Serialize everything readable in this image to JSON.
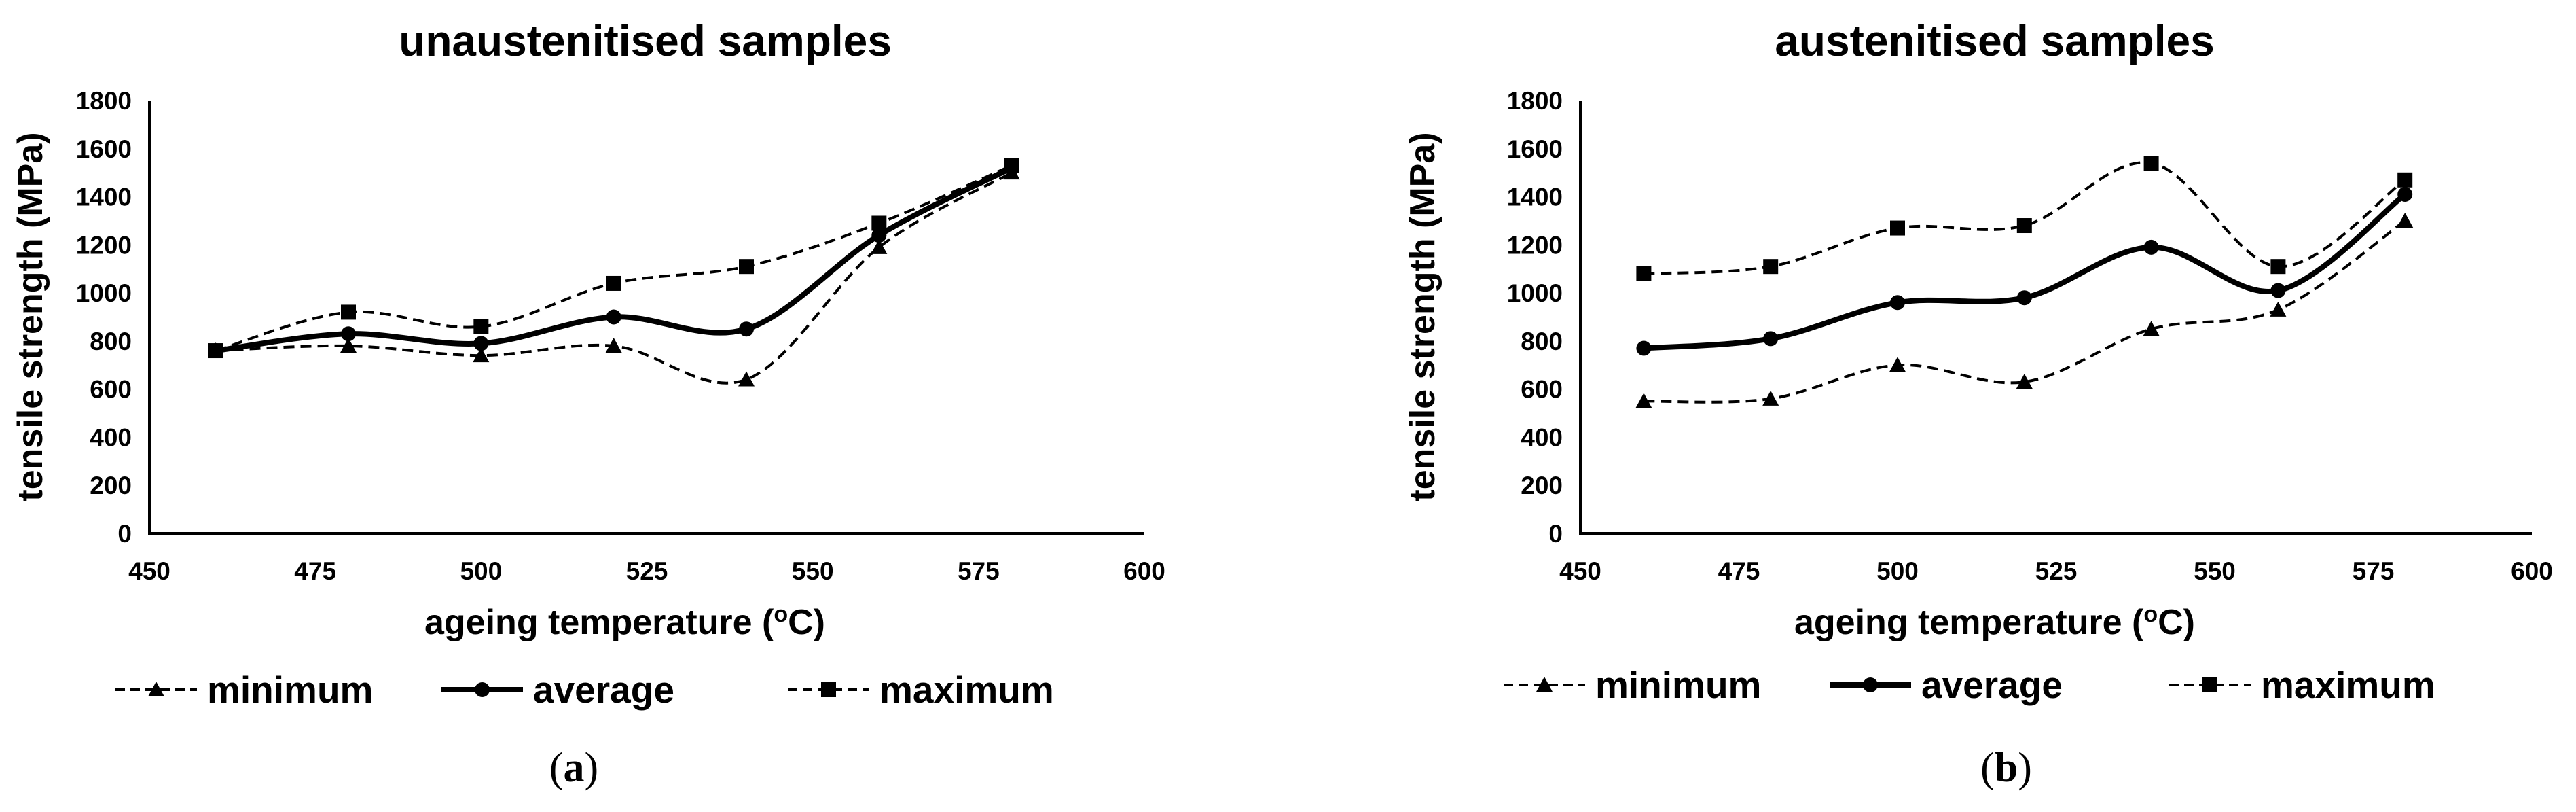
{
  "figure": {
    "legend": {
      "min_label": "minimum",
      "avg_label": "average",
      "max_label": "maximum"
    }
  },
  "chart_data": [
    {
      "type": "line",
      "panel_label": "a",
      "title": "unaustenitised samples",
      "xlabel": "ageing temperature (°C)",
      "xlabel_prefix": "ageing temperature (",
      "xlabel_sup": "o",
      "xlabel_suffix": "C)",
      "ylabel": "tensile strength (MPa)",
      "xlim": [
        450,
        600
      ],
      "ylim": [
        0,
        1800
      ],
      "xticks": [
        450,
        475,
        500,
        525,
        550,
        575,
        600
      ],
      "yticks": [
        0,
        200,
        400,
        600,
        800,
        1000,
        1200,
        1400,
        1600,
        1800
      ],
      "grid": false,
      "legend_position": "bottom",
      "x": [
        460,
        480,
        500,
        520,
        540,
        560,
        580
      ],
      "series": [
        {
          "name": "minimum",
          "style": "dashed",
          "marker": "triangle",
          "values": [
            760,
            780,
            740,
            780,
            640,
            1190,
            1500
          ]
        },
        {
          "name": "average",
          "style": "solid",
          "marker": "circle",
          "values": [
            760,
            830,
            790,
            900,
            850,
            1240,
            1520
          ]
        },
        {
          "name": "maximum",
          "style": "dashed",
          "marker": "square",
          "values": [
            760,
            920,
            860,
            1040,
            1110,
            1290,
            1530
          ]
        }
      ]
    },
    {
      "type": "line",
      "panel_label": "b",
      "title": "austenitised samples",
      "xlabel": "ageing temperature (°C)",
      "xlabel_prefix": "ageing temperature (",
      "xlabel_sup": "o",
      "xlabel_suffix": "C)",
      "ylabel": "tensile strength (MPa)",
      "xlim": [
        450,
        600
      ],
      "ylim": [
        0,
        1800
      ],
      "xticks": [
        450,
        475,
        500,
        525,
        550,
        575,
        600
      ],
      "yticks": [
        0,
        200,
        400,
        600,
        800,
        1000,
        1200,
        1400,
        1600,
        1800
      ],
      "grid": false,
      "legend_position": "bottom",
      "x": [
        460,
        480,
        500,
        520,
        540,
        560,
        580
      ],
      "series": [
        {
          "name": "minimum",
          "style": "dashed",
          "marker": "triangle",
          "values": [
            550,
            560,
            700,
            630,
            850,
            930,
            1300
          ]
        },
        {
          "name": "average",
          "style": "solid",
          "marker": "circle",
          "values": [
            770,
            810,
            960,
            980,
            1190,
            1010,
            1410
          ]
        },
        {
          "name": "maximum",
          "style": "dashed",
          "marker": "square",
          "values": [
            1080,
            1110,
            1270,
            1280,
            1540,
            1110,
            1470
          ]
        }
      ]
    }
  ]
}
